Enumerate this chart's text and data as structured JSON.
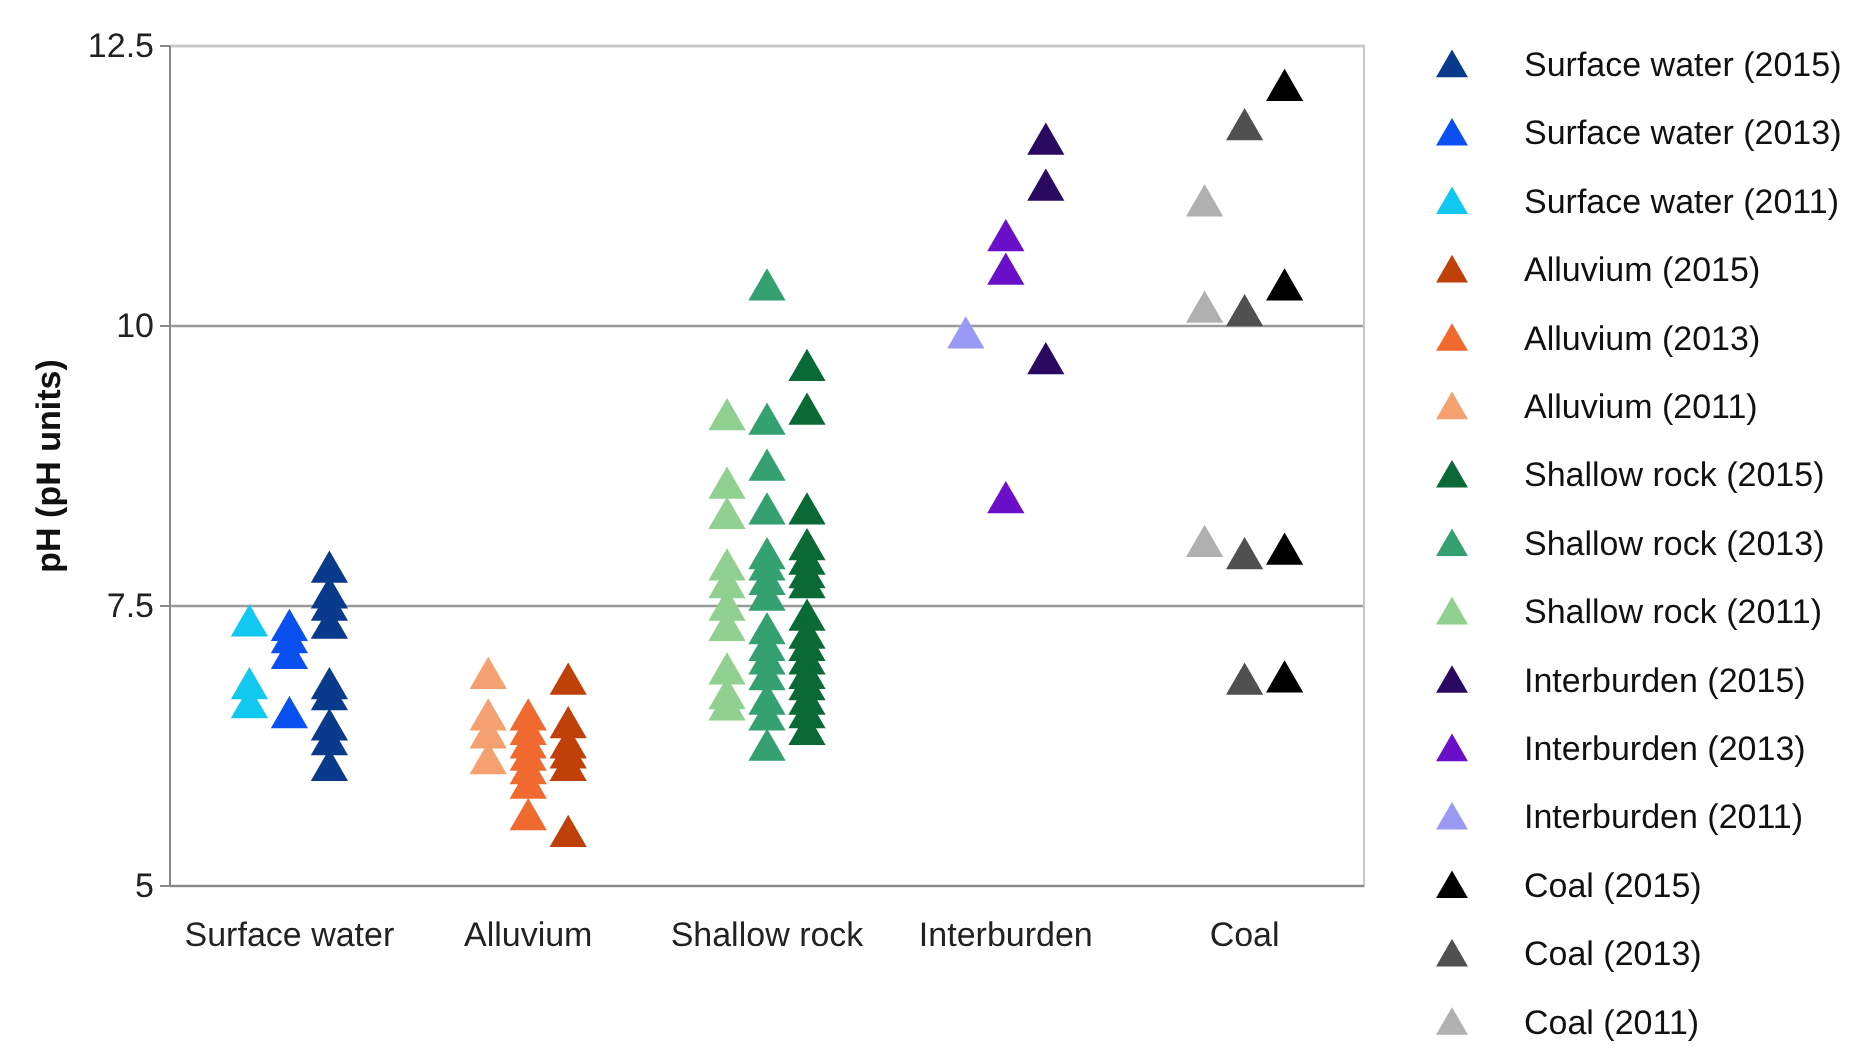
{
  "chart_data": {
    "type": "scatter",
    "ylabel": "pH (pH units)",
    "categories": [
      "Surface water",
      "Alluvium",
      "Shallow rock",
      "Interburden",
      "Coal"
    ],
    "ylim": [
      5,
      12.5
    ],
    "yticks": [
      5,
      7.5,
      10,
      12.5
    ],
    "grid": "y",
    "legend": "right",
    "marker": "triangle",
    "series": [
      {
        "name": "Surface water (2015)",
        "color": "#0a3a8c",
        "x": [
          "Surface water",
          "Surface water",
          "Surface water",
          "Surface water",
          "Surface water",
          "Surface water",
          "Surface water",
          "Surface water",
          "Surface water"
        ],
        "values": [
          7.84,
          7.61,
          7.5,
          7.34,
          6.8,
          6.7,
          6.43,
          6.3,
          6.07
        ]
      },
      {
        "name": "Surface water (2013)",
        "color": "#0a50f0",
        "x": [
          "Surface water",
          "Surface water",
          "Surface water",
          "Surface water"
        ],
        "values": [
          7.32,
          7.21,
          7.07,
          6.54
        ]
      },
      {
        "name": "Surface water (2011)",
        "color": "#10c8f0",
        "x": [
          "Surface water",
          "Surface water",
          "Surface water"
        ],
        "values": [
          7.36,
          6.8,
          6.63
        ]
      },
      {
        "name": "Alluvium (2015)",
        "color": "#c0400a",
        "x": [
          "Alluvium",
          "Alluvium",
          "Alluvium",
          "Alluvium",
          "Alluvium",
          "Alluvium"
        ],
        "values": [
          6.84,
          6.45,
          6.27,
          6.18,
          6.07,
          5.48
        ]
      },
      {
        "name": "Alluvium (2013)",
        "color": "#f06a30",
        "x": [
          "Alluvium",
          "Alluvium",
          "Alluvium",
          "Alluvium",
          "Alluvium",
          "Alluvium",
          "Alluvium"
        ],
        "values": [
          6.52,
          6.39,
          6.27,
          6.16,
          6.04,
          5.91,
          5.63
        ]
      },
      {
        "name": "Alluvium (2011)",
        "color": "#f5a070",
        "x": [
          "Alluvium",
          "Alluvium",
          "Alluvium",
          "Alluvium"
        ],
        "values": [
          6.89,
          6.52,
          6.36,
          6.13
        ]
      },
      {
        "name": "Shallow rock (2015)",
        "color": "#0a6a35",
        "x": [
          "Shallow rock",
          "Shallow rock",
          "Shallow rock",
          "Shallow rock",
          "Shallow rock",
          "Shallow rock",
          "Shallow rock",
          "Shallow rock",
          "Shallow rock",
          "Shallow rock",
          "Shallow rock",
          "Shallow rock",
          "Shallow rock",
          "Shallow rock",
          "Shallow rock",
          "Shallow rock"
        ],
        "values": [
          9.64,
          9.25,
          8.36,
          8.04,
          7.91,
          7.79,
          7.7,
          7.41,
          7.25,
          7.14,
          7.02,
          6.89,
          6.79,
          6.66,
          6.54,
          6.39
        ]
      },
      {
        "name": "Shallow rock (2013)",
        "color": "#35a070",
        "x": [
          "Shallow rock",
          "Shallow rock",
          "Shallow rock",
          "Shallow rock",
          "Shallow rock",
          "Shallow rock",
          "Shallow rock",
          "Shallow rock",
          "Shallow rock",
          "Shallow rock",
          "Shallow rock",
          "Shallow rock",
          "Shallow rock",
          "Shallow rock",
          "Shallow rock"
        ],
        "values": [
          10.36,
          9.16,
          8.75,
          8.36,
          7.96,
          7.86,
          7.73,
          7.59,
          7.29,
          7.14,
          7.02,
          6.88,
          6.66,
          6.52,
          6.25
        ]
      },
      {
        "name": "Shallow rock (2011)",
        "color": "#90d090",
        "x": [
          "Shallow rock",
          "Shallow rock",
          "Shallow rock",
          "Shallow rock",
          "Shallow rock",
          "Shallow rock",
          "Shallow rock",
          "Shallow rock",
          "Shallow rock",
          "Shallow rock"
        ],
        "values": [
          9.2,
          8.59,
          8.32,
          7.86,
          7.7,
          7.5,
          7.32,
          6.93,
          6.71,
          6.61
        ]
      },
      {
        "name": "Interburden (2015)",
        "color": "#2a0a60",
        "x": [
          "Interburden",
          "Interburden",
          "Interburden"
        ],
        "values": [
          11.66,
          11.25,
          9.7
        ]
      },
      {
        "name": "Interburden (2013)",
        "color": "#6a10c8",
        "x": [
          "Interburden",
          "Interburden",
          "Interburden"
        ],
        "values": [
          10.8,
          10.5,
          8.46
        ]
      },
      {
        "name": "Interburden (2011)",
        "color": "#9a9af5",
        "x": [
          "Interburden"
        ],
        "values": [
          9.93
        ]
      },
      {
        "name": "Coal (2015)",
        "color": "#000000",
        "x": [
          "Coal",
          "Coal",
          "Coal",
          "Coal"
        ],
        "values": [
          12.14,
          10.36,
          8.0,
          6.86
        ]
      },
      {
        "name": "Coal (2013)",
        "color": "#505050",
        "x": [
          "Coal",
          "Coal",
          "Coal",
          "Coal"
        ],
        "values": [
          11.79,
          10.13,
          7.96,
          6.84
        ]
      },
      {
        "name": "Coal (2011)",
        "color": "#b0b0b0",
        "x": [
          "Coal",
          "Coal",
          "Coal"
        ],
        "values": [
          11.11,
          10.16,
          8.07
        ]
      }
    ]
  }
}
